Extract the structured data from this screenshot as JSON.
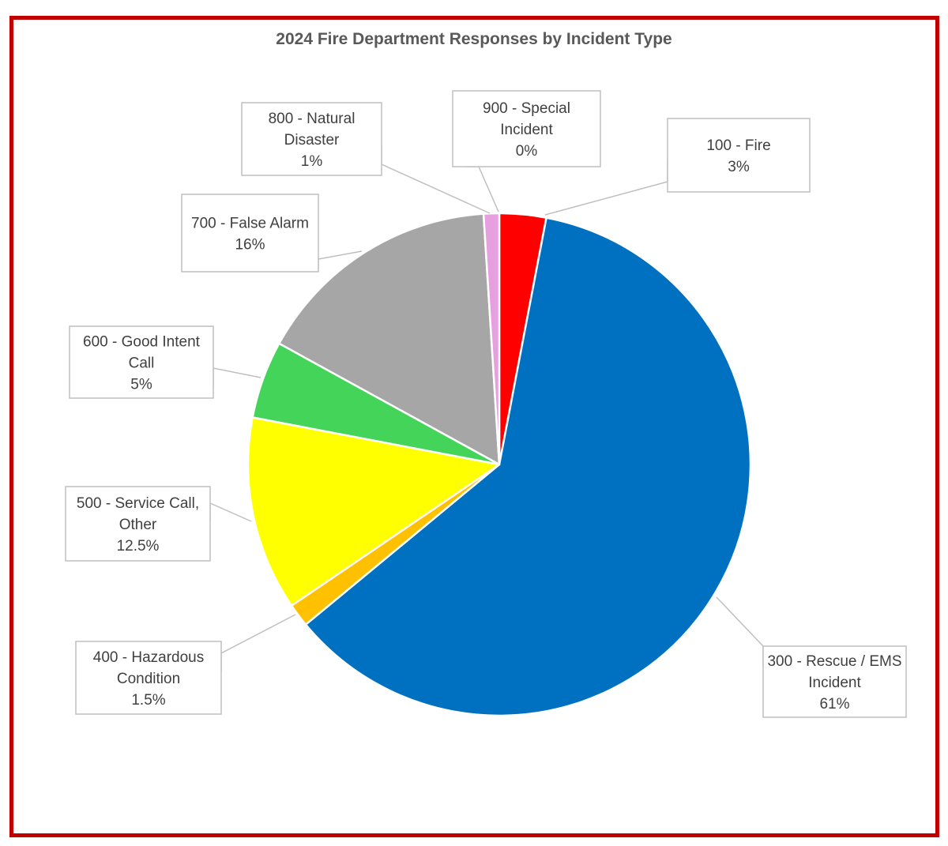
{
  "chart_data": {
    "type": "pie",
    "title": "2024 Fire Department Responses by Incident Type",
    "slices": [
      {
        "name": "100 - Fire",
        "value": 3,
        "label_lines": [
          "100 - Fire",
          "3%"
        ],
        "color": "#ff0000"
      },
      {
        "name": "300 - Rescue / EMS Incident",
        "value": 61,
        "label_lines": [
          "300 - Rescue / EMS",
          "Incident",
          "61%"
        ],
        "color": "#0070c0"
      },
      {
        "name": "400 - Hazardous Condition",
        "value": 1.5,
        "label_lines": [
          "400 - Hazardous",
          "Condition",
          "1.5%"
        ],
        "color": "#ffc000"
      },
      {
        "name": "500 - Service Call, Other",
        "value": 12.5,
        "label_lines": [
          "500 - Service Call,",
          "Other",
          "12.5%"
        ],
        "color": "#ffff00"
      },
      {
        "name": "600 - Good Intent Call",
        "value": 5,
        "label_lines": [
          "600 - Good Intent",
          "Call",
          "5%"
        ],
        "color": "#44d45a"
      },
      {
        "name": "700 - False Alarm",
        "value": 16,
        "label_lines": [
          "700 - False Alarm",
          "16%"
        ],
        "color": "#a6a6a6"
      },
      {
        "name": "800 - Natural Disaster",
        "value": 1,
        "label_lines": [
          "800 - Natural",
          "Disaster",
          "1%"
        ],
        "color": "#e6a0e0"
      },
      {
        "name": "900 - Special Incident",
        "value": 0,
        "label_lines": [
          "900 - Special",
          "Incident",
          "0%"
        ],
        "color": "#7030a0"
      }
    ],
    "legend": "none",
    "border_color": "#c00000"
  }
}
